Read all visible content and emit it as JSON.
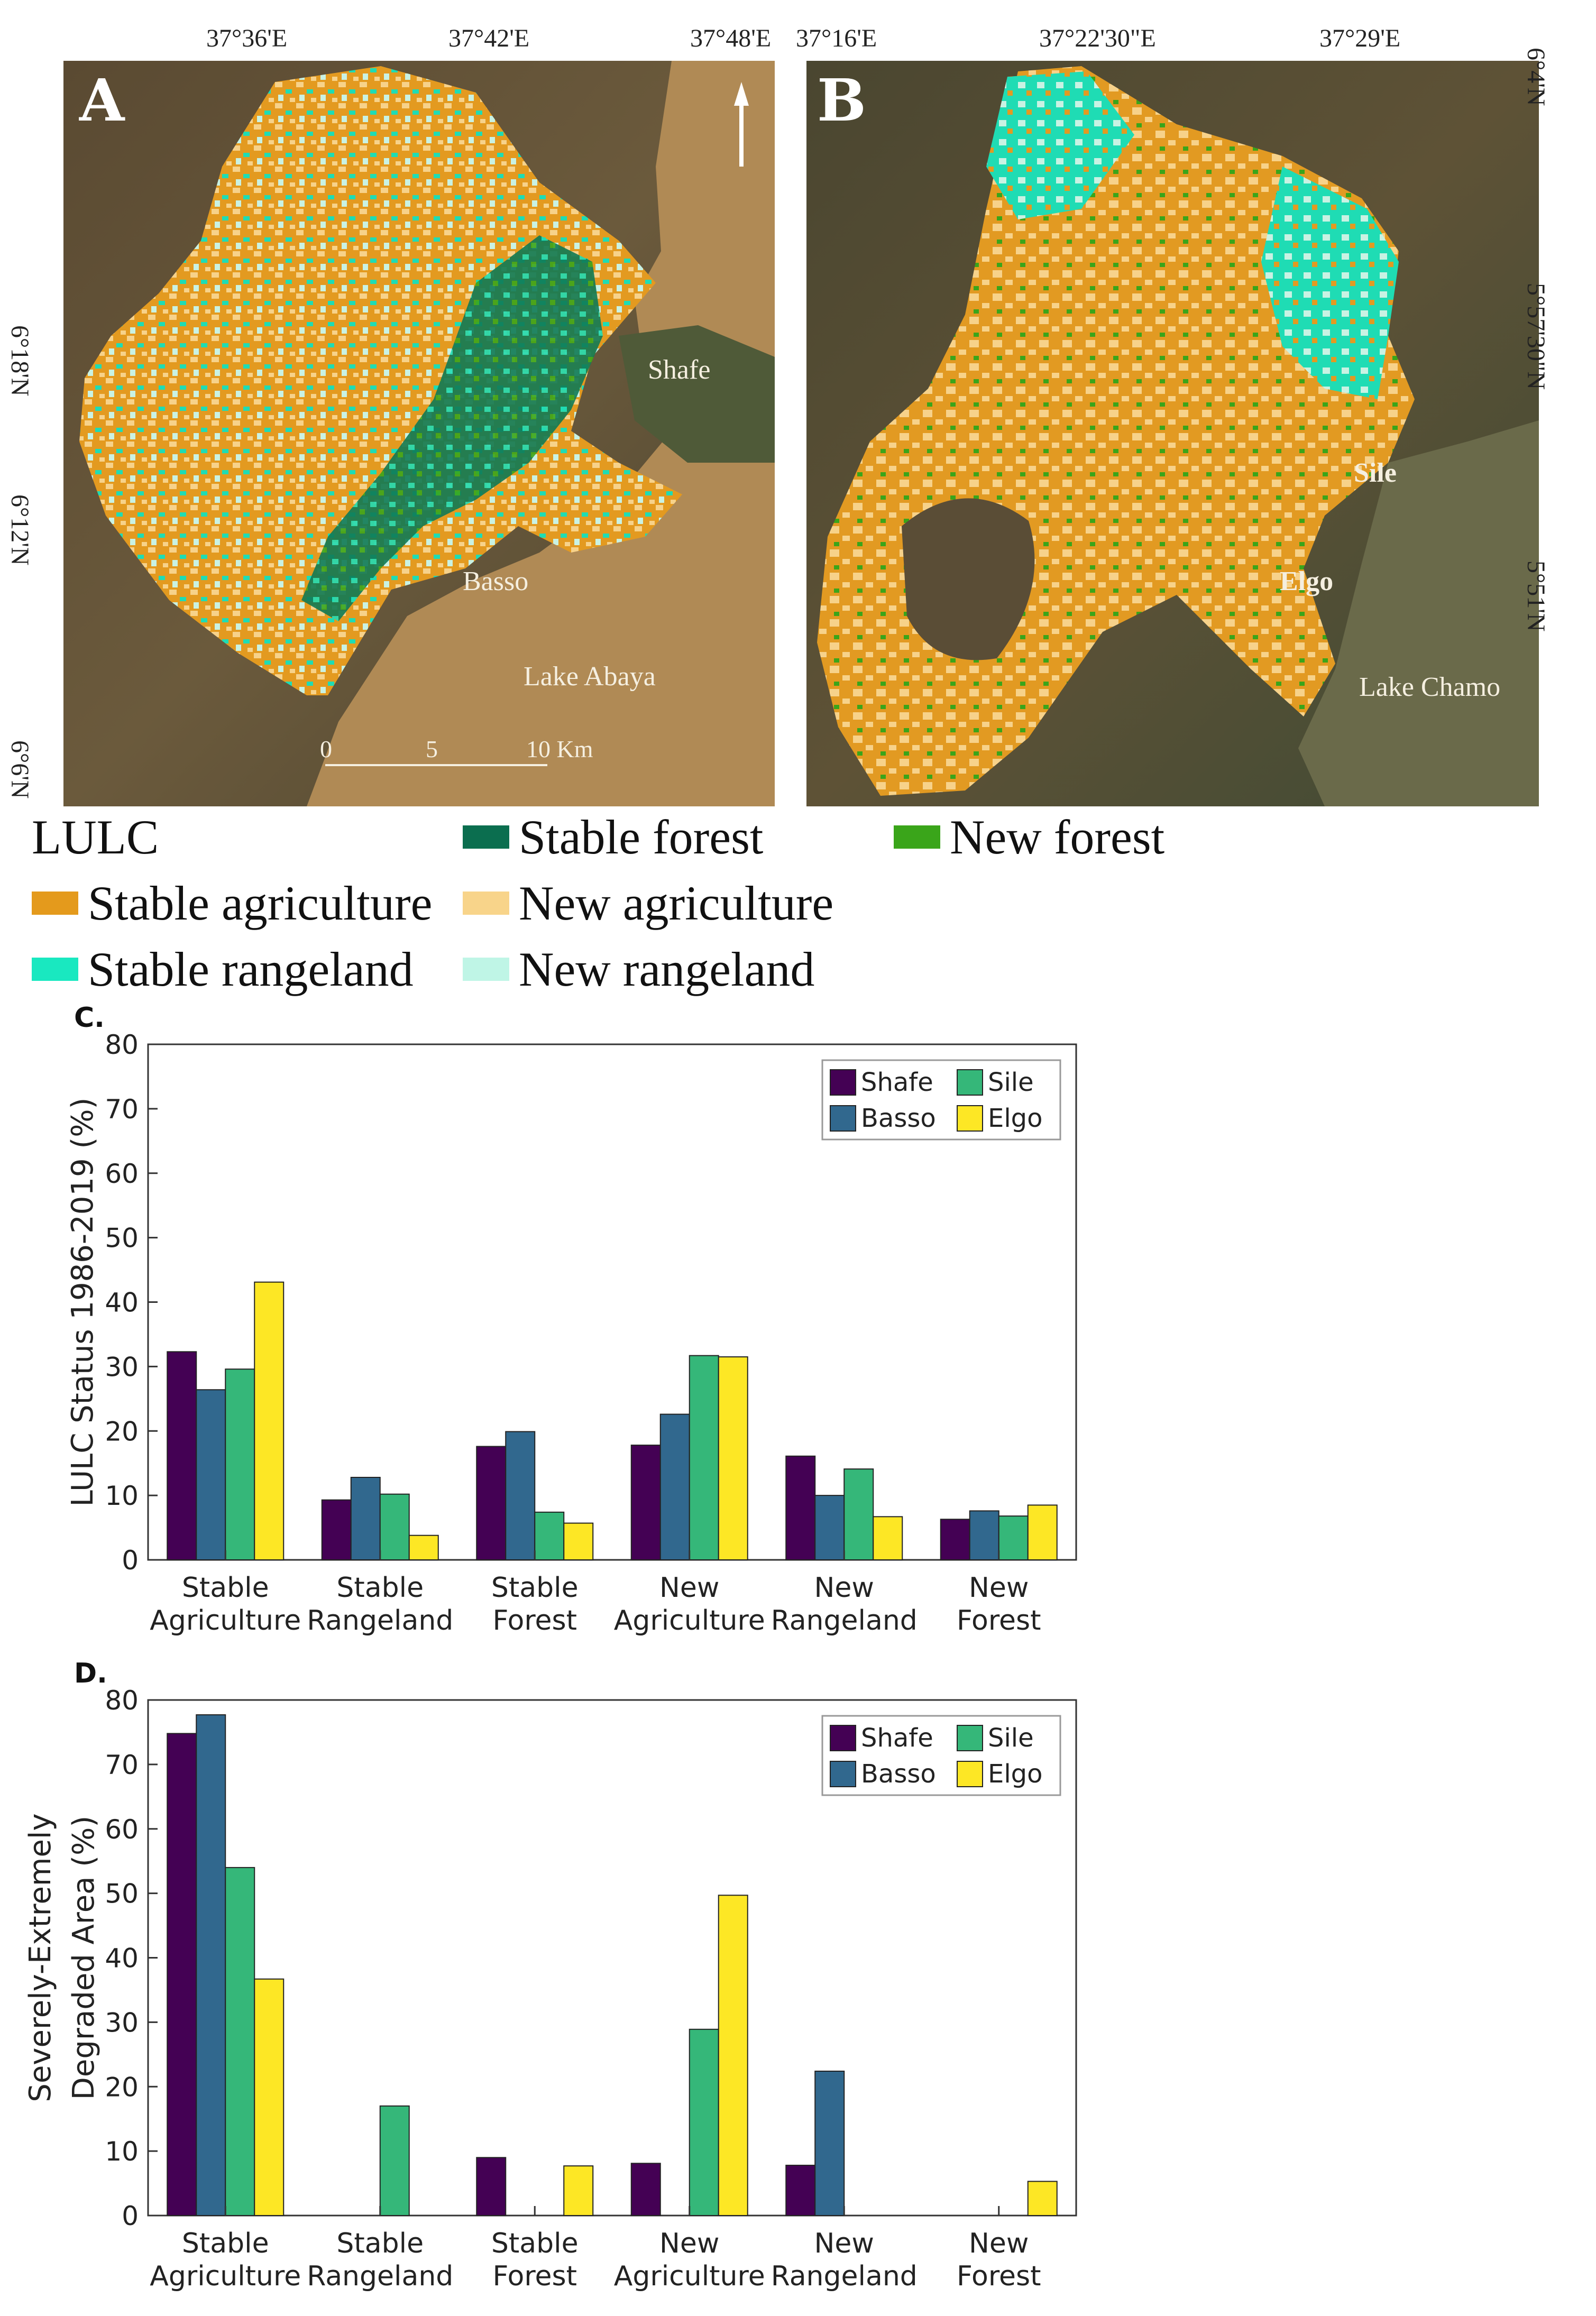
{
  "maps": {
    "map_a": {
      "letter": "A",
      "top_coords": [
        "37°36'E",
        "37°42'E",
        "37°48'E"
      ],
      "left_coords": [
        "6°18'N",
        "6°12'N",
        "6°6'N"
      ],
      "places": [
        "Shafe",
        "Basso",
        "Lake Abaya"
      ],
      "scale": {
        "labels": [
          "0",
          "5",
          "10 Km"
        ]
      }
    },
    "map_b": {
      "letter": "B",
      "top_coords": [
        "37°16'E",
        "37°22'30\"E",
        "37°29'E"
      ],
      "right_coords": [
        "6°4'N",
        "5°57'30\"N",
        "5°51'N"
      ],
      "places": [
        "Sile",
        "Elgo",
        "Lake Chamo"
      ]
    }
  },
  "legend": {
    "title": "LULC",
    "items": [
      {
        "label": "Stable forest",
        "color": "#0b6e4f"
      },
      {
        "label": "New forest",
        "color": "#3aa51a"
      },
      {
        "label": "Stable agriculture",
        "color": "#e49a1c"
      },
      {
        "label": "New agriculture",
        "color": "#f8d48a"
      },
      {
        "label": "Stable rangeland",
        "color": "#19e8c0"
      },
      {
        "label": "New rangeland",
        "color": "#bff5e6"
      }
    ]
  },
  "colors": {
    "Shafe": "#440154",
    "Basso": "#31688e",
    "Sile": "#35b779",
    "Elgo": "#fde725"
  },
  "chart_data": [
    {
      "panel": "C.",
      "type": "bar",
      "categories": [
        [
          "Stable",
          "Agriculture"
        ],
        [
          "Stable",
          "Rangeland"
        ],
        [
          "Stable",
          "Forest"
        ],
        [
          "New",
          "Agriculture"
        ],
        [
          "New",
          "Rangeland"
        ],
        [
          "New",
          "Forest"
        ]
      ],
      "series": [
        {
          "name": "Shafe",
          "values": [
            32.3,
            9.3,
            17.6,
            17.8,
            16.1,
            6.3
          ]
        },
        {
          "name": "Basso",
          "values": [
            26.4,
            12.8,
            19.9,
            22.6,
            10.0,
            7.6
          ]
        },
        {
          "name": "Sile",
          "values": [
            29.6,
            10.2,
            7.4,
            31.7,
            14.1,
            6.8
          ]
        },
        {
          "name": "Elgo",
          "values": [
            43.1,
            3.8,
            5.7,
            31.5,
            6.7,
            8.5
          ]
        }
      ],
      "ylabel": "LULC Status 1986-2019 (%)",
      "ylim": [
        0,
        80
      ],
      "yticks": [
        0,
        10,
        20,
        30,
        40,
        50,
        60,
        70,
        80
      ],
      "legend_position": "top-right"
    },
    {
      "panel": "D.",
      "type": "bar",
      "categories": [
        [
          "Stable",
          "Agriculture"
        ],
        [
          "Stable",
          "Rangeland"
        ],
        [
          "Stable",
          "Forest"
        ],
        [
          "New",
          "Agriculture"
        ],
        [
          "New",
          "Rangeland"
        ],
        [
          "New",
          "Forest"
        ]
      ],
      "series": [
        {
          "name": "Shafe",
          "values": [
            74.8,
            0,
            9.0,
            8.1,
            7.8,
            0
          ]
        },
        {
          "name": "Basso",
          "values": [
            77.7,
            0,
            0,
            0,
            22.4,
            0
          ]
        },
        {
          "name": "Sile",
          "values": [
            54.0,
            17.0,
            0,
            28.9,
            0,
            0
          ]
        },
        {
          "name": "Elgo",
          "values": [
            36.7,
            0,
            7.7,
            49.7,
            0,
            5.3
          ]
        }
      ],
      "ylabel": [
        "Severely-Extremely",
        "Degraded Area (%)"
      ],
      "ylim": [
        0,
        80
      ],
      "yticks": [
        0,
        10,
        20,
        30,
        40,
        50,
        60,
        70,
        80
      ],
      "legend_position": "top-right"
    }
  ]
}
